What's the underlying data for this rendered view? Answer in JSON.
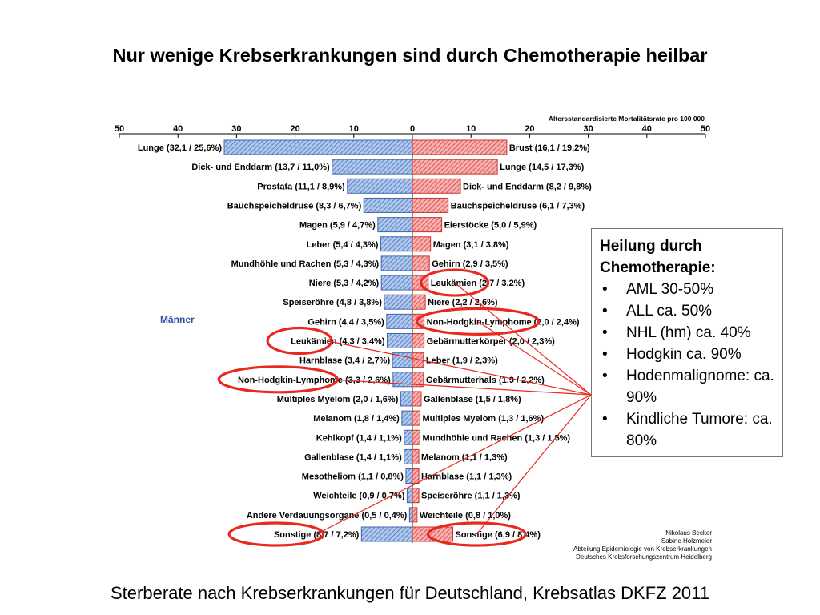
{
  "title": "Nur wenige Krebserkrankungen sind durch Chemotherapie heilbar",
  "caption": "Sterberate nach Krebserkrankungen für Deutschland, Krebsatlas DKFZ 2011",
  "colors": {
    "men_bar": "#3f66b3",
    "men_fill": "#aec7ec",
    "women_bar": "#d0342c",
    "women_fill": "#f6b0b0",
    "highlight": "#e8291f"
  },
  "info_box": {
    "title_lines": [
      "Heilung durch",
      "Chemotherapie:"
    ],
    "items": [
      "AML 30-50%",
      "ALL ca. 50%",
      "NHL (hm) ca. 40%",
      "Hodgkin ca. 90%",
      "Hodenmalignome: ca. 90%",
      "Kindliche Tumore: ca. 80%"
    ]
  },
  "credits": [
    "Nikolaus Becker",
    "Sabine Holzmeier",
    "Abteilung Epidemiologie von Krebserkrankungen",
    "Deutsches Krebsforschungszentrum Heidelberg"
  ],
  "chart_data": {
    "type": "bar",
    "axis_title": "Altersstandardisierte Mortalitätsrate pro 100 000",
    "xlim": [
      -50,
      50
    ],
    "ticks": [
      50,
      40,
      30,
      20,
      10,
      0,
      10,
      20,
      30,
      40,
      50
    ],
    "group_label_left": "Männer",
    "men": [
      {
        "label": "Lunge (32,1 / 25,6%)",
        "value": 32.1
      },
      {
        "label": "Dick- und Enddarm (13,7 / 11,0%)",
        "value": 13.7
      },
      {
        "label": "Prostata (11,1 / 8,9%)",
        "value": 11.1
      },
      {
        "label": "Bauchspeicheldruse (8,3 / 6,7%)",
        "value": 8.3
      },
      {
        "label": "Magen (5,9 / 4,7%)",
        "value": 5.9
      },
      {
        "label": "Leber (5,4 / 4,3%)",
        "value": 5.4
      },
      {
        "label": "Mundhöhle und Rachen (5,3 / 4,3%)",
        "value": 5.3
      },
      {
        "label": "Niere (5,3 / 4,2%)",
        "value": 5.3
      },
      {
        "label": "Speiseröhre (4,8 / 3,8%)",
        "value": 4.8
      },
      {
        "label": "Gehirn (4,4 / 3,5%)",
        "value": 4.4
      },
      {
        "label": "Leukämien (4,3 / 3,4%)",
        "value": 4.3
      },
      {
        "label": "Harnblase (3,4 / 2,7%)",
        "value": 3.4
      },
      {
        "label": "Non-Hodgkin-Lymphome (3,3 / 2,6%)",
        "value": 3.3
      },
      {
        "label": "Multiples Myelom (2,0 / 1,6%)",
        "value": 2.0
      },
      {
        "label": "Melanom (1,8 / 1,4%)",
        "value": 1.8
      },
      {
        "label": "Kehlkopf (1,4 / 1,1%)",
        "value": 1.4
      },
      {
        "label": "Gallenblase (1,4 / 1,1%)",
        "value": 1.4
      },
      {
        "label": "Mesotheliom (1,1 / 0,8%)",
        "value": 1.1
      },
      {
        "label": "Weichteile (0,9 / 0,7%)",
        "value": 0.9
      },
      {
        "label": "Andere Verdauungsorgane (0,5 / 0,4%)",
        "value": 0.5
      },
      {
        "label": "Sonstige (8,7 / 7,2%)",
        "value": 8.7
      }
    ],
    "women": [
      {
        "label": "Brust (16,1 / 19,2%)",
        "value": 16.1
      },
      {
        "label": "Lunge (14,5 / 17,3%)",
        "value": 14.5
      },
      {
        "label": "Dick- und Enddarm (8,2 / 9,8%)",
        "value": 8.2
      },
      {
        "label": "Bauchspeicheldruse (6,1 / 7,3%)",
        "value": 6.1
      },
      {
        "label": "Eierstöcke (5,0 / 5,9%)",
        "value": 5.0
      },
      {
        "label": "Magen (3,1 / 3,8%)",
        "value": 3.1
      },
      {
        "label": "Gehirn (2,9 / 3,5%)",
        "value": 2.9
      },
      {
        "label": "Leukämien (2,7 / 3,2%)",
        "value": 2.7
      },
      {
        "label": "Niere (2,2 / 2,6%)",
        "value": 2.2
      },
      {
        "label": "Non-Hodgkin-Lymphome (2,0 / 2,4%)",
        "value": 2.0
      },
      {
        "label": "Gebärmutterkörper (2,0 / 2,3%)",
        "value": 2.0
      },
      {
        "label": "Leber (1,9 / 2,3%)",
        "value": 1.9
      },
      {
        "label": "Gebärmutterhals (1,9 / 2,2%)",
        "value": 1.9
      },
      {
        "label": "Gallenblase (1,5 / 1,8%)",
        "value": 1.5
      },
      {
        "label": "Multiples Myelom (1,3 / 1,6%)",
        "value": 1.3
      },
      {
        "label": "Mundhöhle und Rachen (1,3 / 1,5%)",
        "value": 1.3
      },
      {
        "label": "Melanom (1,1 / 1,3%)",
        "value": 1.1
      },
      {
        "label": "Harnblase (1,1 / 1,3%)",
        "value": 1.1
      },
      {
        "label": "Speiseröhre (1,1 / 1,3%)",
        "value": 1.1
      },
      {
        "label": "Weichteile (0,8 / 1,0%)",
        "value": 0.8
      },
      {
        "label": "Sonstige (6,9 / 8,4%)",
        "value": 6.9
      }
    ],
    "highlighted": [
      {
        "side": "women",
        "index": 7
      },
      {
        "side": "women",
        "index": 9
      },
      {
        "side": "men",
        "index": 10
      },
      {
        "side": "men",
        "index": 12
      },
      {
        "side": "men",
        "index": 20
      },
      {
        "side": "women",
        "index": 20
      }
    ]
  }
}
